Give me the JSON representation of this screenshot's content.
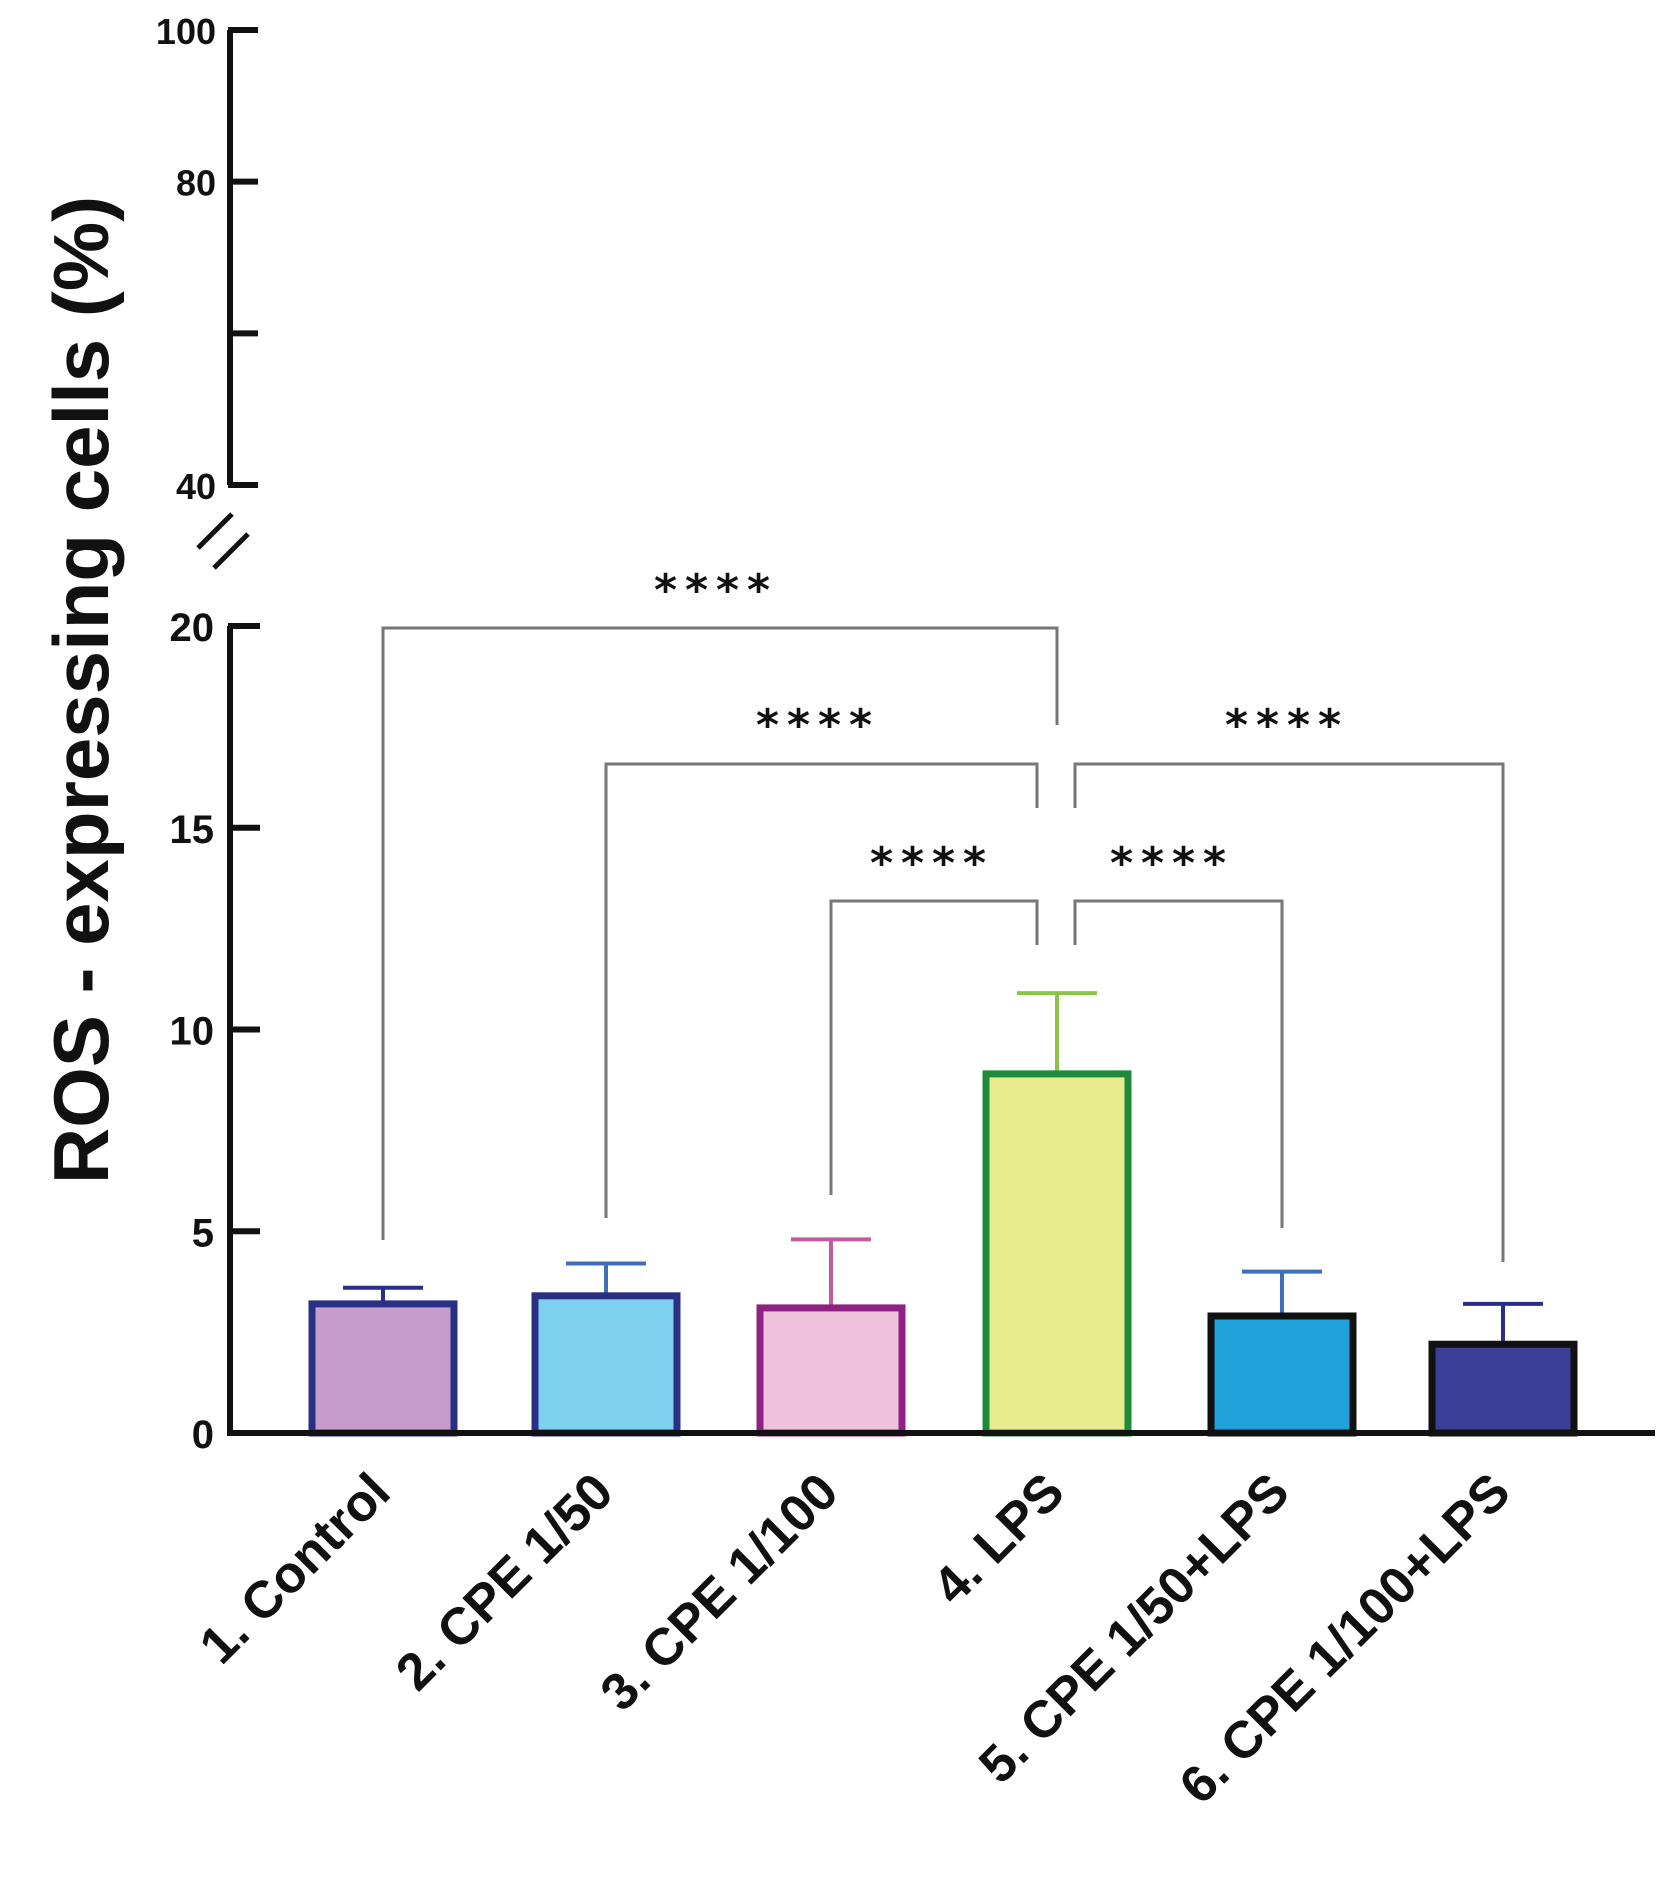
{
  "chart_data": {
    "type": "bar",
    "ylabel": "ROS - expressing cells (%)",
    "categories": [
      "1. Control",
      "2. CPE 1/50",
      "3. CPE 1/100",
      "4. LPS",
      "5. CPE 1/50+LPS",
      "6. CPE 1/100+LPS"
    ],
    "values": [
      3.2,
      3.4,
      3.1,
      8.9,
      2.9,
      2.2
    ],
    "errors": [
      0.4,
      0.8,
      1.7,
      2.0,
      1.1,
      1.0
    ],
    "colors": {
      "fill": [
        "#c59ccb",
        "#7dd1ee",
        "#efc2dc",
        "#e9eb8f",
        "#21a1da",
        "#3c3f97"
      ],
      "stroke": [
        "#2a2f86",
        "#2a2f86",
        "#8e2182",
        "#1f8a3c",
        "#111111",
        "#111111"
      ],
      "error": [
        "#2a2f86",
        "#3f6fb6",
        "#c35aa6",
        "#8cc44a",
        "#3f6fb6",
        "#2a2f86"
      ]
    },
    "y_axis_lower": {
      "range": [
        0,
        20
      ],
      "ticks": [
        "0",
        "5",
        "10",
        "15",
        "20"
      ]
    },
    "y_axis_upper": {
      "range": [
        40,
        100
      ],
      "ticks": [
        "40",
        "80",
        "100"
      ]
    },
    "axis_break": "//",
    "grid": false,
    "significance": [
      {
        "between": [
          "1. Control",
          "4. LPS"
        ],
        "label": "****"
      },
      {
        "between": [
          "2. CPE 1/50",
          "4. LPS"
        ],
        "label": "****"
      },
      {
        "between": [
          "3. CPE 1/100",
          "4. LPS"
        ],
        "label": "****"
      },
      {
        "between": [
          "4. LPS",
          "5. CPE 1/50+LPS"
        ],
        "label": "****"
      },
      {
        "between": [
          "4. LPS",
          "6. CPE 1/100+LPS"
        ],
        "label": "****"
      }
    ]
  }
}
